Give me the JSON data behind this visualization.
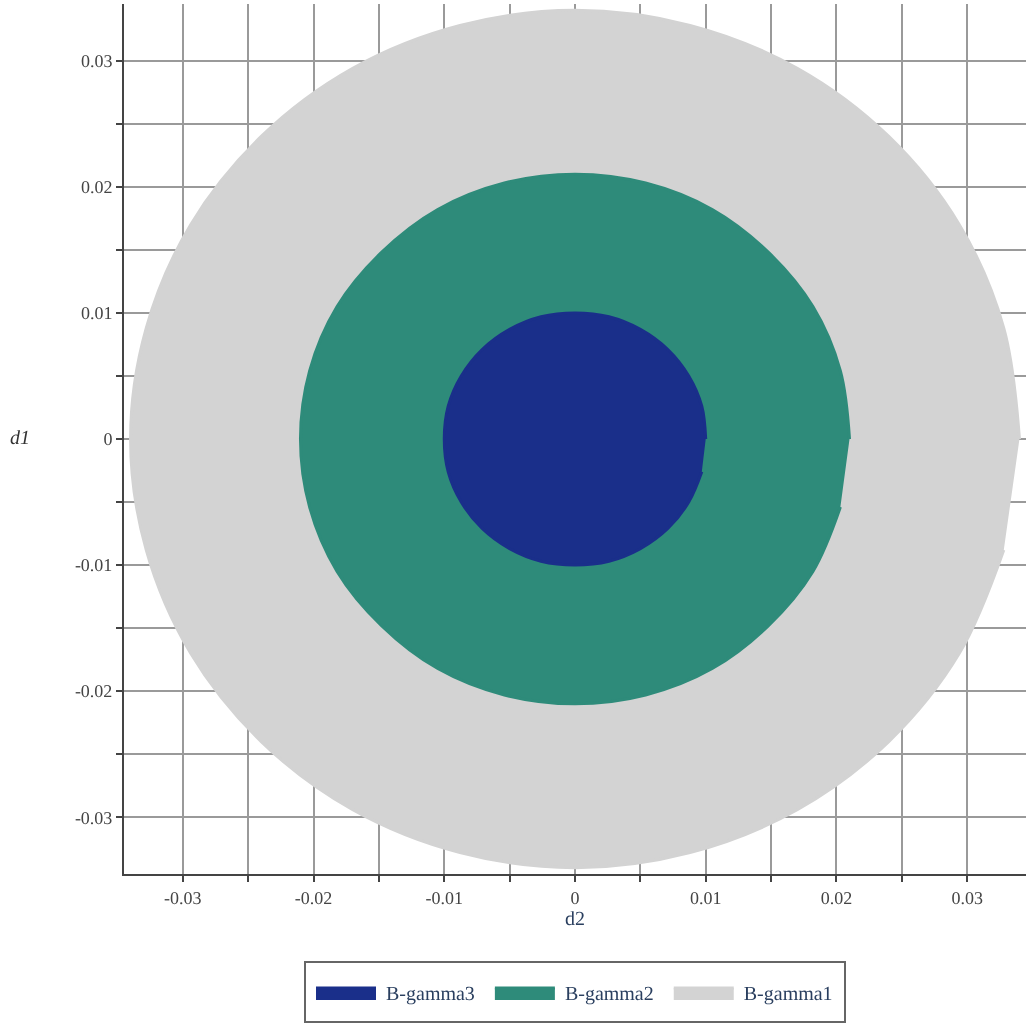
{
  "chart_data": {
    "type": "area",
    "xlabel": "d2",
    "ylabel": "d1",
    "xlim": [
      -0.0345,
      0.0345
    ],
    "ylim": [
      -0.0345,
      0.0345
    ],
    "xticks": [
      -0.03,
      {
        "value": -0.025,
        "label": null
      },
      -0.02,
      {
        "value": -0.015,
        "label": null
      },
      -0.01,
      {
        "value": -0.005,
        "label": null
      },
      0,
      {
        "value": 0.005,
        "label": null
      },
      0.01,
      {
        "value": 0.015,
        "label": null
      },
      0.02,
      {
        "value": 0.025,
        "label": null
      },
      0.03
    ],
    "yticks": [
      -0.03,
      {
        "value": -0.025,
        "label": null
      },
      -0.02,
      {
        "value": -0.015,
        "label": null
      },
      -0.01,
      {
        "value": -0.005,
        "label": null
      },
      0,
      {
        "value": 0.005,
        "label": null
      },
      0.01,
      {
        "value": 0.015,
        "label": null
      },
      0.02,
      {
        "value": 0.025,
        "label": null
      },
      0.03
    ],
    "grid": true,
    "legend": "bottom",
    "series": [
      {
        "name": "B-gamma3",
        "color": "#1a2f8a",
        "x": [
          0.01,
          0.0097,
          0.0087,
          0.0071,
          0.005,
          0.0026,
          0,
          -0.0026,
          -0.005,
          -0.0071,
          -0.0087,
          -0.0097,
          -0.01,
          -0.0097,
          -0.0087,
          -0.0071,
          -0.005,
          -0.0026,
          0,
          0.0026,
          0.005,
          0.0071,
          0.0087,
          0.0097
        ],
        "values": [
          0,
          0.0026,
          0.005,
          0.0071,
          0.0087,
          0.0097,
          0.01,
          0.0097,
          0.0087,
          0.0071,
          0.005,
          0.0026,
          0,
          -0.0026,
          -0.005,
          -0.0071,
          -0.0087,
          -0.0097,
          -0.01,
          -0.0097,
          -0.0087,
          -0.0071,
          -0.005,
          -0.0026
        ]
      },
      {
        "name": "B-gamma2",
        "color": "#2e8b7a",
        "x": [
          0.021,
          0.0203,
          0.0182,
          0.0148,
          0.0105,
          0.0054,
          0,
          -0.0054,
          -0.0105,
          -0.0148,
          -0.0182,
          -0.0203,
          -0.021,
          -0.0203,
          -0.0182,
          -0.0148,
          -0.0105,
          -0.0054,
          0,
          0.0054,
          0.0105,
          0.0148,
          0.0182,
          0.0203
        ],
        "values": [
          0,
          0.0054,
          0.0105,
          0.0148,
          0.0182,
          0.0203,
          0.021,
          0.0203,
          0.0182,
          0.0148,
          0.0105,
          0.0054,
          0,
          -0.0054,
          -0.0105,
          -0.0148,
          -0.0182,
          -0.0203,
          -0.021,
          -0.0203,
          -0.0182,
          -0.0148,
          -0.0105,
          -0.0054
        ]
      },
      {
        "name": "B-gamma1",
        "color": "#d3d3d3",
        "x": [
          0.034,
          0.0328,
          0.0294,
          0.024,
          0.017,
          0.0088,
          0,
          -0.0088,
          -0.017,
          -0.024,
          -0.0294,
          -0.0328,
          -0.034,
          -0.0328,
          -0.0294,
          -0.024,
          -0.017,
          -0.0088,
          0,
          0.0088,
          0.017,
          0.024,
          0.0294,
          0.0328
        ],
        "values": [
          0,
          0.0088,
          0.017,
          0.024,
          0.0294,
          0.0328,
          0.034,
          0.0328,
          0.0294,
          0.024,
          0.017,
          0.0088,
          0,
          -0.0088,
          -0.017,
          -0.024,
          -0.0294,
          -0.0328,
          -0.034,
          -0.0328,
          -0.0294,
          -0.024,
          -0.017,
          -0.0088
        ]
      }
    ]
  }
}
